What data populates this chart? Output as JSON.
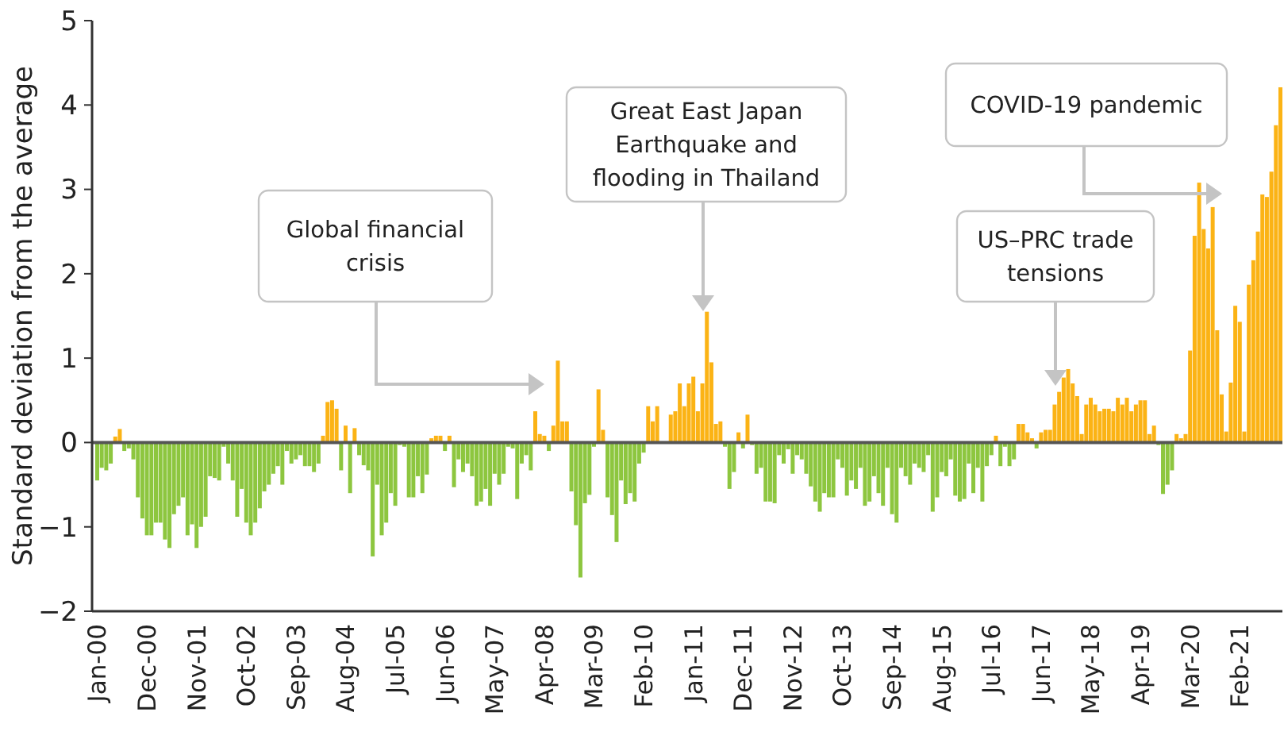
{
  "chart_data": {
    "type": "bar",
    "ylabel": "Standard deviation from the average",
    "ylim": [
      -2,
      5
    ],
    "yticks": [
      {
        "value": -2,
        "label": "−2"
      },
      {
        "value": -1,
        "label": "−1"
      },
      0,
      1,
      2,
      3,
      4,
      5
    ],
    "annotations": [
      "Global financial crisis",
      "Great East Japan Earthquake and flooding in Thailand",
      "US–PRC trade tensions",
      "COVID-19 pandemic"
    ],
    "categories": [
      "Jan-00",
      null,
      null,
      null,
      null,
      null,
      null,
      null,
      null,
      null,
      null,
      "Dec-00",
      null,
      null,
      null,
      null,
      null,
      null,
      null,
      null,
      null,
      null,
      "Nov-01",
      null,
      null,
      null,
      null,
      null,
      null,
      null,
      null,
      null,
      null,
      "Oct-02",
      null,
      null,
      null,
      null,
      null,
      null,
      null,
      null,
      null,
      null,
      "Sep-03",
      null,
      null,
      null,
      null,
      null,
      null,
      null,
      null,
      null,
      null,
      "Aug-04",
      null,
      null,
      null,
      null,
      null,
      null,
      null,
      null,
      null,
      null,
      "Jul-05",
      null,
      null,
      null,
      null,
      null,
      null,
      null,
      null,
      null,
      null,
      "Jun-06",
      null,
      null,
      null,
      null,
      null,
      null,
      null,
      null,
      null,
      null,
      "May-07",
      null,
      null,
      null,
      null,
      null,
      null,
      null,
      null,
      null,
      null,
      "Apr-08",
      null,
      null,
      null,
      null,
      null,
      null,
      null,
      null,
      null,
      null,
      "Mar-09",
      null,
      null,
      null,
      null,
      null,
      null,
      null,
      null,
      null,
      null,
      "Feb-10",
      null,
      null,
      null,
      null,
      null,
      null,
      null,
      null,
      null,
      null,
      "Jan-11",
      null,
      null,
      null,
      null,
      null,
      null,
      null,
      null,
      null,
      null,
      "Dec-11",
      null,
      null,
      null,
      null,
      null,
      null,
      null,
      null,
      null,
      null,
      "Nov-12",
      null,
      null,
      null,
      null,
      null,
      null,
      null,
      null,
      null,
      null,
      "Oct-13",
      null,
      null,
      null,
      null,
      null,
      null,
      null,
      null,
      null,
      null,
      "Sep-14",
      null,
      null,
      null,
      null,
      null,
      null,
      null,
      null,
      null,
      null,
      "Aug-15",
      null,
      null,
      null,
      null,
      null,
      null,
      null,
      null,
      null,
      null,
      "Jul-16",
      null,
      null,
      null,
      null,
      null,
      null,
      null,
      null,
      null,
      null,
      "Jun-17",
      null,
      null,
      null,
      null,
      null,
      null,
      null,
      null,
      null,
      null,
      "May-18",
      null,
      null,
      null,
      null,
      null,
      null,
      null,
      null,
      null,
      null,
      "Apr-19",
      null,
      null,
      null,
      null,
      null,
      null,
      null,
      null,
      null,
      null,
      "Mar-20",
      null,
      null,
      null,
      null,
      null,
      null,
      null,
      null,
      null,
      null,
      "Feb-21",
      null,
      null,
      null,
      null,
      null,
      null,
      null,
      null,
      null
    ],
    "values": [
      -0.45,
      -0.3,
      -0.33,
      -0.25,
      0.07,
      0.16,
      -0.1,
      -0.07,
      -0.2,
      -0.65,
      -0.9,
      -1.1,
      -1.1,
      -0.95,
      -0.95,
      -1.15,
      -1.25,
      -0.85,
      -0.75,
      -0.65,
      -1.1,
      -0.97,
      -1.25,
      -1.0,
      -0.88,
      -0.4,
      -0.42,
      -0.45,
      -0.05,
      -0.25,
      -0.45,
      -0.88,
      -0.55,
      -0.95,
      -1.1,
      -0.95,
      -0.78,
      -0.58,
      -0.5,
      -0.37,
      -0.28,
      -0.5,
      -0.1,
      -0.25,
      -0.2,
      -0.15,
      -0.28,
      -0.28,
      -0.35,
      -0.25,
      0.08,
      0.48,
      0.5,
      0.4,
      -0.33,
      0.2,
      -0.6,
      0.17,
      -0.15,
      -0.27,
      -0.33,
      -1.35,
      -0.5,
      -1.1,
      -0.95,
      -0.6,
      -0.75,
      -0.03,
      -0.05,
      -0.65,
      -0.65,
      -0.4,
      -0.6,
      -0.38,
      0.05,
      0.08,
      0.08,
      -0.1,
      0.08,
      -0.53,
      -0.2,
      -0.35,
      -0.25,
      -0.4,
      -0.75,
      -0.7,
      -0.55,
      -0.75,
      -0.37,
      -0.5,
      -0.37,
      -0.05,
      -0.07,
      -0.67,
      -0.25,
      -0.15,
      -0.33,
      0.37,
      0.1,
      0.08,
      -0.1,
      0.2,
      0.97,
      0.25,
      0.25,
      -0.58,
      -0.98,
      -1.6,
      -0.72,
      -0.62,
      -0.05,
      0.63,
      0.15,
      -0.65,
      -0.86,
      -1.18,
      -0.45,
      -0.73,
      -0.6,
      -0.7,
      -0.25,
      -0.12,
      0.43,
      0.25,
      0.43,
      null,
      null,
      0.33,
      0.37,
      0.7,
      0.43,
      0.7,
      0.78,
      0.37,
      0.7,
      1.55,
      0.95,
      0.22,
      0.25,
      -0.05,
      -0.55,
      -0.35,
      0.12,
      -0.07,
      0.33,
      -0.03,
      -0.37,
      -0.3,
      -0.7,
      -0.7,
      -0.72,
      -0.15,
      -0.25,
      -0.08,
      -0.37,
      -0.15,
      -0.2,
      -0.37,
      -0.52,
      -0.7,
      -0.82,
      -0.6,
      -0.65,
      -0.65,
      -0.2,
      -0.3,
      -0.63,
      -0.45,
      -0.55,
      -0.3,
      -0.75,
      -0.7,
      -0.4,
      -0.6,
      -0.75,
      -0.3,
      -0.85,
      -0.95,
      -0.3,
      -0.4,
      -0.5,
      -0.25,
      -0.3,
      -0.35,
      -0.15,
      -0.82,
      -0.65,
      -0.35,
      -0.4,
      -0.2,
      -0.63,
      -0.7,
      -0.67,
      -0.25,
      -0.6,
      -0.3,
      -0.7,
      -0.28,
      -0.15,
      0.08,
      -0.28,
      -0.05,
      -0.28,
      -0.2,
      0.22,
      0.22,
      0.12,
      0.05,
      -0.07,
      0.12,
      0.15,
      0.15,
      0.45,
      0.6,
      0.77,
      0.87,
      0.7,
      0.55,
      0.1,
      0.45,
      0.53,
      0.45,
      0.37,
      0.4,
      0.4,
      0.37,
      0.53,
      0.45,
      0.53,
      0.37,
      0.45,
      0.5,
      0.5,
      0.1,
      0.2,
      -0.03,
      -0.61,
      -0.5,
      -0.33,
      0.1,
      0.05,
      0.1,
      1.09,
      2.45,
      3.08,
      2.53,
      2.3,
      2.79,
      1.33,
      0.57,
      0.13,
      0.71,
      1.62,
      1.43,
      0.13,
      1.87,
      2.16,
      2.5,
      2.94,
      2.91,
      3.21,
      3.76,
      4.21
    ],
    "colors": [
      "#8dc63f",
      "#8dc63f",
      "#8dc63f",
      "#8dc63f",
      "#fbb315",
      "#fbb315",
      "#8dc63f",
      "#8dc63f",
      "#8dc63f",
      "#8dc63f",
      "#8dc63f",
      "#8dc63f",
      "#8dc63f",
      "#8dc63f",
      "#8dc63f",
      "#8dc63f",
      "#8dc63f",
      "#8dc63f",
      "#8dc63f",
      "#8dc63f",
      "#8dc63f",
      "#8dc63f",
      "#8dc63f",
      "#8dc63f",
      "#8dc63f",
      "#8dc63f",
      "#8dc63f",
      "#8dc63f",
      "#8dc63f",
      "#8dc63f",
      "#8dc63f",
      "#8dc63f",
      "#8dc63f",
      "#8dc63f",
      "#8dc63f",
      "#8dc63f",
      "#8dc63f",
      "#8dc63f",
      "#8dc63f",
      "#8dc63f",
      "#8dc63f",
      "#8dc63f",
      "#8dc63f",
      "#8dc63f",
      "#8dc63f",
      "#8dc63f",
      "#8dc63f",
      "#8dc63f",
      "#8dc63f",
      "#8dc63f",
      "#fbb315",
      "#fbb315",
      "#fbb315",
      "#fbb315",
      "#8dc63f",
      "#fbb315",
      "#8dc63f",
      "#fbb315",
      "#8dc63f",
      "#8dc63f",
      "#8dc63f",
      "#8dc63f",
      "#8dc63f",
      "#8dc63f",
      "#8dc63f",
      "#8dc63f",
      "#8dc63f",
      "#8dc63f",
      "#8dc63f",
      "#8dc63f",
      "#8dc63f",
      "#8dc63f",
      "#8dc63f",
      "#8dc63f",
      "#fbb315",
      "#fbb315",
      "#fbb315",
      "#8dc63f",
      "#fbb315",
      "#8dc63f",
      "#8dc63f",
      "#8dc63f",
      "#8dc63f",
      "#8dc63f",
      "#8dc63f",
      "#8dc63f",
      "#8dc63f",
      "#8dc63f",
      "#8dc63f",
      "#8dc63f",
      "#8dc63f",
      "#8dc63f",
      "#8dc63f",
      "#8dc63f",
      "#8dc63f",
      "#8dc63f",
      "#8dc63f",
      "#fbb315",
      "#fbb315",
      "#fbb315",
      "#8dc63f",
      "#fbb315",
      "#fbb315",
      "#fbb315",
      "#fbb315",
      "#8dc63f",
      "#8dc63f",
      "#8dc63f",
      "#8dc63f",
      "#8dc63f",
      "#8dc63f",
      "#fbb315",
      "#fbb315",
      "#8dc63f",
      "#8dc63f",
      "#8dc63f",
      "#8dc63f",
      "#8dc63f",
      "#8dc63f",
      "#8dc63f",
      "#8dc63f",
      "#8dc63f",
      "#fbb315",
      "#fbb315",
      "#fbb315",
      null,
      null,
      "#fbb315",
      "#fbb315",
      "#fbb315",
      "#fbb315",
      "#fbb315",
      "#fbb315",
      "#fbb315",
      "#fbb315",
      "#fbb315",
      "#fbb315",
      "#fbb315",
      "#fbb315",
      "#8dc63f",
      "#8dc63f",
      "#8dc63f",
      "#fbb315",
      "#8dc63f",
      "#fbb315",
      "#8dc63f",
      "#8dc63f",
      "#8dc63f",
      "#8dc63f",
      "#8dc63f",
      "#8dc63f",
      "#8dc63f",
      "#8dc63f",
      "#8dc63f",
      "#8dc63f",
      "#8dc63f",
      "#8dc63f",
      "#8dc63f",
      "#8dc63f",
      "#8dc63f",
      "#8dc63f",
      "#8dc63f",
      "#8dc63f",
      "#8dc63f",
      "#8dc63f",
      "#8dc63f",
      "#8dc63f",
      "#8dc63f",
      "#8dc63f",
      "#8dc63f",
      "#8dc63f",
      "#8dc63f",
      "#8dc63f",
      "#8dc63f",
      "#8dc63f",
      "#8dc63f",
      "#8dc63f",
      "#8dc63f",
      "#8dc63f",
      "#8dc63f",
      "#8dc63f",
      "#8dc63f",
      "#8dc63f",
      "#8dc63f",
      "#8dc63f",
      "#8dc63f",
      "#8dc63f",
      "#8dc63f",
      "#8dc63f",
      "#8dc63f",
      "#8dc63f",
      "#8dc63f",
      "#8dc63f",
      "#8dc63f",
      "#8dc63f",
      "#8dc63f",
      "#8dc63f",
      "#8dc63f",
      "#8dc63f",
      "#fbb315",
      "#8dc63f",
      "#8dc63f",
      "#8dc63f",
      "#8dc63f",
      "#fbb315",
      "#fbb315",
      "#fbb315",
      "#fbb315",
      "#8dc63f",
      "#fbb315",
      "#fbb315",
      "#fbb315",
      "#fbb315",
      "#fbb315",
      "#fbb315",
      "#fbb315",
      "#fbb315",
      "#fbb315",
      "#fbb315",
      "#fbb315",
      "#fbb315",
      "#fbb315",
      "#fbb315",
      "#fbb315",
      "#fbb315",
      "#fbb315",
      "#fbb315",
      "#fbb315",
      "#fbb315",
      "#fbb315",
      "#fbb315",
      "#fbb315",
      "#fbb315",
      "#fbb315",
      "#fbb315",
      "#8dc63f",
      "#8dc63f",
      "#8dc63f",
      "#8dc63f",
      "#fbb315",
      "#fbb315",
      "#fbb315",
      "#fbb315",
      "#fbb315",
      "#fbb315",
      "#fbb315",
      "#fbb315",
      "#fbb315",
      "#fbb315",
      "#fbb315",
      "#fbb315",
      "#fbb315",
      "#fbb315",
      "#fbb315",
      "#fbb315",
      "#fbb315",
      "#fbb315",
      "#fbb315",
      "#fbb315",
      "#fbb315",
      "#fbb315",
      "#fbb315",
      "#fbb315"
    ]
  }
}
